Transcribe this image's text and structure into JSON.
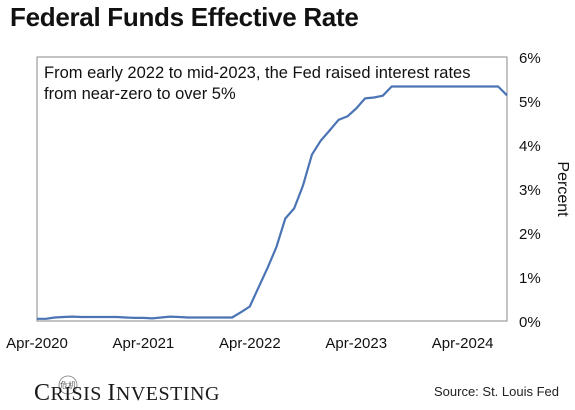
{
  "header": {
    "title": "Federal Funds Effective Rate"
  },
  "annotation": {
    "line1": "From early 2022 to mid-2023, the Fed raised interest rates",
    "line2": "from near-zero to over 5%"
  },
  "footer": {
    "brand_first": "C",
    "brand_rest": "RISIS ",
    "brand_second": "I",
    "brand_rest2": "NVESTING",
    "source": "Source: St. Louis Fed"
  },
  "colors": {
    "line": "#4a74b4",
    "axis": "#333333",
    "text": "#111111"
  },
  "chart_data": {
    "type": "line",
    "title": "Federal Funds Effective Rate",
    "xlabel": "",
    "ylabel": "Percent",
    "ylim": [
      0,
      6
    ],
    "yticks": [
      0,
      1,
      2,
      3,
      4,
      5,
      6
    ],
    "ytick_labels": [
      "0%",
      "1%",
      "2%",
      "3%",
      "4%",
      "5%",
      "6%"
    ],
    "xlim": [
      "2020-04",
      "2024-09"
    ],
    "xtick_labels": [
      "Apr-2020",
      "Apr-2021",
      "Apr-2022",
      "Apr-2023",
      "Apr-2024"
    ],
    "xticks": [
      "2020-04",
      "2021-04",
      "2022-04",
      "2023-04",
      "2024-04"
    ],
    "grid": false,
    "y_axis_side": "right",
    "series": [
      {
        "x": [
          "2020-04",
          "2020-05",
          "2020-06",
          "2020-07",
          "2020-08",
          "2020-09",
          "2020-10",
          "2020-11",
          "2020-12",
          "2021-01",
          "2021-02",
          "2021-03",
          "2021-04",
          "2021-05",
          "2021-06",
          "2021-07",
          "2021-08",
          "2021-09",
          "2021-10",
          "2021-11",
          "2021-12",
          "2022-01",
          "2022-02",
          "2022-03",
          "2022-04",
          "2022-05",
          "2022-06",
          "2022-07",
          "2022-08",
          "2022-09",
          "2022-10",
          "2022-11",
          "2022-12",
          "2023-01",
          "2023-02",
          "2023-03",
          "2023-04",
          "2023-05",
          "2023-06",
          "2023-07",
          "2023-08",
          "2023-09",
          "2023-10",
          "2023-11",
          "2023-12",
          "2024-01",
          "2024-02",
          "2024-03",
          "2024-04",
          "2024-05",
          "2024-06",
          "2024-07",
          "2024-08",
          "2024-09"
        ],
        "values": [
          0.05,
          0.05,
          0.08,
          0.09,
          0.1,
          0.09,
          0.09,
          0.09,
          0.09,
          0.09,
          0.08,
          0.07,
          0.07,
          0.06,
          0.08,
          0.1,
          0.09,
          0.08,
          0.08,
          0.08,
          0.08,
          0.08,
          0.08,
          0.2,
          0.33,
          0.77,
          1.21,
          1.68,
          2.33,
          2.56,
          3.08,
          3.78,
          4.1,
          4.33,
          4.57,
          4.65,
          4.83,
          5.06,
          5.08,
          5.12,
          5.33,
          5.33,
          5.33,
          5.33,
          5.33,
          5.33,
          5.33,
          5.33,
          5.33,
          5.33,
          5.33,
          5.33,
          5.33,
          5.13
        ]
      }
    ]
  }
}
